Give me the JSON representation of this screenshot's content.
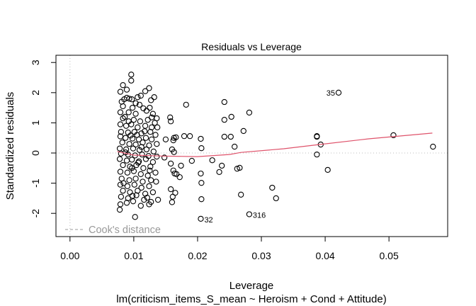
{
  "chart_data": {
    "type": "scatter",
    "title": "Residuals vs Leverage",
    "xlabel": "Leverage",
    "sublabel": "lm(criticism_items_S_mean ~ Heroism + Cond + Attitude)",
    "ylabel": "Standardized residuals",
    "xlim": [
      -0.0022,
      0.0592
    ],
    "ylim": [
      -2.77,
      3.24
    ],
    "x_ticks": [
      0.0,
      0.01,
      0.02,
      0.03,
      0.04,
      0.05
    ],
    "x_tick_labels": [
      "0.00",
      "0.01",
      "0.02",
      "0.03",
      "0.04",
      "0.05"
    ],
    "y_ticks": [
      -2,
      -1,
      0,
      1,
      2,
      3
    ],
    "y_tick_labels": [
      "-2",
      "-1",
      "0",
      "1",
      "2",
      "3"
    ],
    "legend": {
      "label": "Cook's distance",
      "placement": "bottom-left"
    },
    "colors": {
      "points": "#000000",
      "smoother": "#DF536B",
      "reference": "#BEBEBE",
      "legend": "#999999"
    },
    "labeled_points": [
      {
        "label": "35",
        "x": 0.0421,
        "y": 2.0
      },
      {
        "label": "32",
        "x": 0.0205,
        "y": -2.18
      },
      {
        "label": "316",
        "x": 0.0281,
        "y": -2.03
      }
    ],
    "sparse_points": [
      [
        0.0387,
        0.54
      ],
      [
        0.0387,
        0.56
      ],
      [
        0.0393,
        0.28
      ],
      [
        0.0387,
        -0.05
      ],
      [
        0.0404,
        -0.56
      ],
      [
        0.0507,
        0.59
      ],
      [
        0.0569,
        0.21
      ],
      [
        0.0317,
        -1.15
      ],
      [
        0.0323,
        -1.5
      ],
      [
        0.0242,
        1.69
      ],
      [
        0.0242,
        1.1
      ],
      [
        0.0253,
        1.2
      ],
      [
        0.0281,
        1.34
      ],
      [
        0.0272,
        0.73
      ],
      [
        0.0182,
        1.6
      ],
      [
        0.0242,
        0.54
      ],
      [
        0.0252,
        0.54
      ],
      [
        0.0258,
        0.21
      ],
      [
        0.0234,
        -0.63
      ],
      [
        0.0262,
        -0.52
      ],
      [
        0.0266,
        -0.49
      ],
      [
        0.0268,
        -1.38
      ],
      [
        0.0205,
        -0.68
      ],
      [
        0.0206,
        -0.99
      ],
      [
        0.0206,
        -1.53
      ],
      [
        0.0179,
        0.56
      ],
      [
        0.0188,
        0.56
      ],
      [
        0.0205,
        0.47
      ],
      [
        0.0206,
        0.16
      ],
      [
        0.0223,
        -0.24
      ],
      [
        0.0238,
        -0.42
      ],
      [
        0.0191,
        -0.26
      ],
      [
        0.0174,
        -0.42
      ],
      [
        0.0157,
        1.18
      ],
      [
        0.0158,
        1.05
      ],
      [
        0.0163,
        0.5
      ],
      [
        0.0166,
        0.52
      ],
      [
        0.0162,
        0.42
      ],
      [
        0.016,
        0.12
      ],
      [
        0.0163,
        0.03
      ],
      [
        0.0158,
        -0.35
      ],
      [
        0.0162,
        -0.58
      ],
      [
        0.0164,
        -0.68
      ],
      [
        0.0167,
        -0.7
      ],
      [
        0.0161,
        -1.45
      ],
      [
        0.0158,
        -1.2
      ],
      [
        0.0165,
        -1.32
      ],
      [
        0.016,
        -1.63
      ],
      [
        0.015,
        0.45
      ],
      [
        0.0172,
        -0.8
      ],
      [
        0.0148,
        -0.15
      ]
    ],
    "cluster_points": [
      [
        0.0096,
        2.6
      ],
      [
        0.0096,
        2.4
      ],
      [
        0.0083,
        2.25
      ],
      [
        0.0079,
        2.03
      ],
      [
        0.0089,
        2.1
      ],
      [
        0.0118,
        2.05
      ],
      [
        0.0124,
        2.15
      ],
      [
        0.0111,
        1.9
      ],
      [
        0.0089,
        1.83
      ],
      [
        0.0093,
        1.8
      ],
      [
        0.0097,
        1.78
      ],
      [
        0.0085,
        1.78
      ],
      [
        0.0103,
        1.65
      ],
      [
        0.0109,
        1.6
      ],
      [
        0.0127,
        1.75
      ],
      [
        0.0132,
        1.85
      ],
      [
        0.0083,
        1.55
      ],
      [
        0.0098,
        1.5
      ],
      [
        0.0115,
        1.48
      ],
      [
        0.0125,
        1.5
      ],
      [
        0.0079,
        1.35
      ],
      [
        0.0092,
        1.35
      ],
      [
        0.0103,
        1.3
      ],
      [
        0.012,
        1.4
      ],
      [
        0.013,
        1.3
      ],
      [
        0.0083,
        1.15
      ],
      [
        0.01,
        1.1
      ],
      [
        0.011,
        1.05
      ],
      [
        0.0122,
        1.1
      ],
      [
        0.0136,
        1.15
      ],
      [
        0.0079,
        0.95
      ],
      [
        0.0088,
        0.9
      ],
      [
        0.0096,
        0.95
      ],
      [
        0.0106,
        0.85
      ],
      [
        0.0118,
        0.9
      ],
      [
        0.0128,
        0.85
      ],
      [
        0.008,
        0.7
      ],
      [
        0.0091,
        0.68
      ],
      [
        0.0101,
        0.7
      ],
      [
        0.0112,
        0.65
      ],
      [
        0.0126,
        0.7
      ],
      [
        0.0134,
        0.6
      ],
      [
        0.0079,
        0.55
      ],
      [
        0.0087,
        0.5
      ],
      [
        0.0098,
        0.48
      ],
      [
        0.0108,
        0.45
      ],
      [
        0.0119,
        0.5
      ],
      [
        0.0128,
        0.45
      ],
      [
        0.0082,
        0.35
      ],
      [
        0.0093,
        0.3
      ],
      [
        0.0103,
        0.28
      ],
      [
        0.0114,
        0.35
      ],
      [
        0.0124,
        0.25
      ],
      [
        0.0136,
        0.3
      ],
      [
        0.0078,
        0.15
      ],
      [
        0.0088,
        0.12
      ],
      [
        0.0099,
        0.15
      ],
      [
        0.0109,
        0.1
      ],
      [
        0.012,
        0.12
      ],
      [
        0.0131,
        0.05
      ],
      [
        0.008,
        -0.02
      ],
      [
        0.0091,
        -0.05
      ],
      [
        0.0102,
        -0.08
      ],
      [
        0.0113,
        -0.05
      ],
      [
        0.0123,
        -0.1
      ],
      [
        0.0136,
        -0.12
      ],
      [
        0.0078,
        -0.2
      ],
      [
        0.0089,
        -0.25
      ],
      [
        0.0097,
        -0.22
      ],
      [
        0.0108,
        -0.28
      ],
      [
        0.0119,
        -0.2
      ],
      [
        0.013,
        -0.3
      ],
      [
        0.0083,
        -0.4
      ],
      [
        0.0094,
        -0.45
      ],
      [
        0.0104,
        -0.4
      ],
      [
        0.0115,
        -0.5
      ],
      [
        0.0126,
        -0.45
      ],
      [
        0.0079,
        -0.62
      ],
      [
        0.009,
        -0.65
      ],
      [
        0.01,
        -0.6
      ],
      [
        0.0111,
        -0.7
      ],
      [
        0.0122,
        -0.75
      ],
      [
        0.0134,
        -0.65
      ],
      [
        0.0081,
        -0.85
      ],
      [
        0.0093,
        -0.9
      ],
      [
        0.0103,
        -0.85
      ],
      [
        0.0114,
        -0.95
      ],
      [
        0.0127,
        -0.9
      ],
      [
        0.0079,
        -1.05
      ],
      [
        0.009,
        -1.1
      ],
      [
        0.0101,
        -1.05
      ],
      [
        0.0112,
        -1.15
      ],
      [
        0.0124,
        -1.1
      ],
      [
        0.0083,
        -1.25
      ],
      [
        0.0094,
        -1.3
      ],
      [
        0.0106,
        -1.25
      ],
      [
        0.0118,
        -1.35
      ],
      [
        0.013,
        -1.3
      ],
      [
        0.008,
        -1.45
      ],
      [
        0.0091,
        -1.5
      ],
      [
        0.0104,
        -1.4
      ],
      [
        0.0116,
        -1.55
      ],
      [
        0.0127,
        -1.62
      ],
      [
        0.0079,
        -1.7
      ],
      [
        0.0089,
        -1.65
      ],
      [
        0.0099,
        -1.6
      ],
      [
        0.0111,
        -1.75
      ],
      [
        0.0124,
        -1.7
      ],
      [
        0.0078,
        -1.88
      ],
      [
        0.0102,
        -2.12
      ],
      [
        0.0086,
        1.2
      ],
      [
        0.0095,
        0.58
      ],
      [
        0.0087,
        0.02
      ],
      [
        0.0097,
        -0.5
      ],
      [
        0.0084,
        -1.0
      ],
      [
        0.0106,
        1.85
      ],
      [
        0.0117,
        0.72
      ],
      [
        0.0107,
        -0.32
      ],
      [
        0.0121,
        -1.48
      ],
      [
        0.0133,
        1.0
      ],
      [
        0.0135,
        -0.95
      ],
      [
        0.0137,
        0.85
      ],
      [
        0.0138,
        -1.55
      ],
      [
        0.0081,
        1.7
      ],
      [
        0.0092,
        1.05
      ],
      [
        0.0098,
        -1.42
      ],
      [
        0.0112,
        0.2
      ],
      [
        0.0125,
        -0.58
      ],
      [
        0.0128,
        1.18
      ],
      [
        0.0105,
        0.6
      ]
    ],
    "smoother": {
      "x": [
        0.0074,
        0.01,
        0.0145,
        0.02,
        0.025,
        0.0268,
        0.0335,
        0.039,
        0.0468,
        0.0568
      ],
      "y": [
        0.05,
        -0.07,
        -0.1,
        -0.12,
        -0.05,
        0.02,
        0.14,
        0.28,
        0.47,
        0.66
      ]
    }
  }
}
